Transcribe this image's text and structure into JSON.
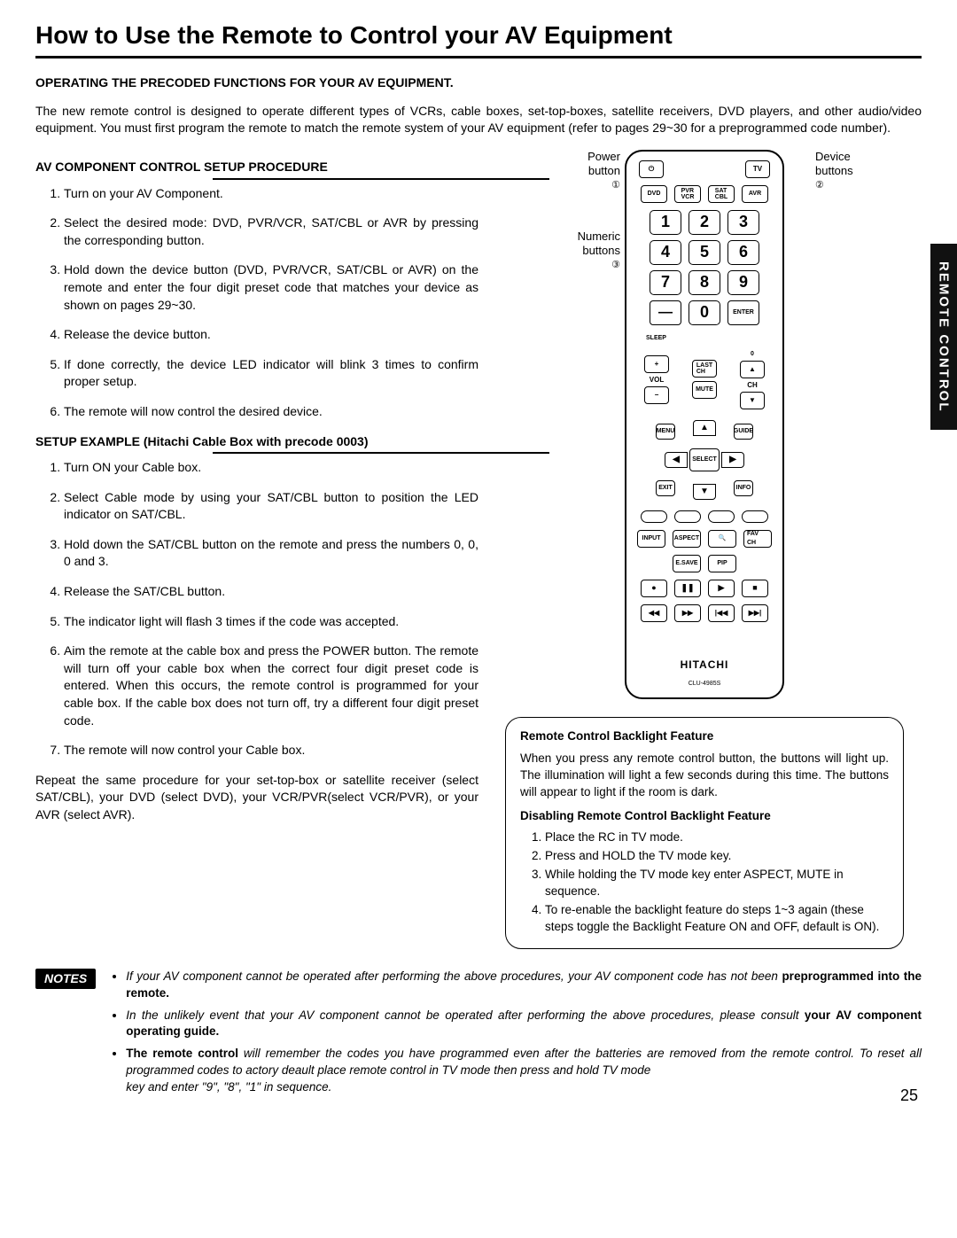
{
  "title": "How to Use the Remote to Control your AV Equipment",
  "section_heading": "OPERATING THE PRECODED FUNCTIONS FOR YOUR AV EQUIPMENT.",
  "intro": "The new remote control is designed to operate different types of VCRs, cable boxes, set-top-boxes, satellite receivers, DVD players, and other audio/video equipment. You must first program the remote to match the remote system of your AV equipment (refer to pages 29~30 for a preprogrammed code number).",
  "setup_heading": "AV COMPONENT CONTROL SETUP PROCEDURE",
  "setup_steps": [
    "Turn on your AV Component.",
    "Select the desired mode: DVD, PVR/VCR, SAT/CBL or AVR by pressing the corresponding button.",
    "Hold down the device button (DVD, PVR/VCR, SAT/CBL or AVR) on the remote and enter the four digit preset code that matches your device as shown on pages 29~30.",
    "Release the device button.",
    "If done correctly, the device LED indicator will blink 3 times to confirm proper setup.",
    "The remote will now control the desired device."
  ],
  "example_heading": "SETUP EXAMPLE (Hitachi Cable Box with precode 0003)",
  "example_steps": [
    "Turn ON your Cable box.",
    "Select Cable mode by using your SAT/CBL button to position the LED indicator on SAT/CBL.",
    "Hold down the SAT/CBL button on the remote and press the numbers 0, 0, 0 and 3.",
    " Release the SAT/CBL button.",
    "The indicator light will flash 3 times if the code was accepted.",
    "Aim the remote at the cable box and press the POWER button. The remote will turn off your cable box when the correct four digit preset code is entered. When this occurs, the remote control is programmed for your cable box. If the cable box does not turn off, try a different four digit preset code.",
    "The remote will now control your Cable box."
  ],
  "repeat_text": "Repeat the same procedure for your set-top-box or satellite receiver (select SAT/CBL), your DVD (select DVD), your VCR/PVR(select VCR/PVR), or your AVR (select AVR).",
  "callouts": {
    "power": "Power button",
    "power_num": "①",
    "device": "Device buttons",
    "device_num": "②",
    "numeric": "Numeric buttons",
    "numeric_num": "③"
  },
  "remote": {
    "power_icon": "⏻",
    "tv": "TV",
    "device_row": [
      "DVD",
      "PVR\nVCR",
      "SAT\nCBL",
      "AVR"
    ],
    "numbers": [
      "1",
      "2",
      "3",
      "4",
      "5",
      "6",
      "7",
      "8",
      "9",
      "—",
      "0",
      "ENTER"
    ],
    "sleep": "SLEEP",
    "vol": "VOL",
    "plus": "+",
    "minus": "−",
    "last_ch": "LAST\nCH",
    "mute": "MUTE",
    "ch": "CH",
    "ch_up": "▲",
    "ch_dn": "▼",
    "ch_zero": "0",
    "menu": "MENU",
    "guide": "GUIDE",
    "exit": "EXIT",
    "info": "INFO",
    "select": "SELECT",
    "arrow_up": "▲",
    "arrow_down": "▼",
    "arrow_left": "◀",
    "arrow_right": "▶",
    "color_row": [
      "",
      "",
      "",
      ""
    ],
    "func_row1": [
      "INPUT",
      "ASPECT",
      "🔍",
      "FAV CH"
    ],
    "func_row2": [
      "E.SAVE",
      "PIP"
    ],
    "transport1": [
      "●",
      "❚❚",
      "▶",
      "■"
    ],
    "transport2": [
      "◀◀",
      "▶▶",
      "|◀◀",
      "▶▶|"
    ],
    "brand": "HITACHI",
    "model": "CLU-4985S"
  },
  "backlight": {
    "title1": "Remote Control Backlight Feature",
    "text": "When you press any remote control button, the buttons will light up. The illumination will light a few seconds during this time. The buttons will appear to light if the room is dark.",
    "title2": "Disabling Remote Control Backlight Feature",
    "steps": [
      "Place the RC in TV mode.",
      "Press and HOLD the TV mode key.",
      "While holding the TV mode key enter ASPECT, MUTE in sequence.",
      "To re-enable the backlight feature do steps 1~3 again (these steps toggle the Backlight Feature ON and OFF, default is ON)."
    ]
  },
  "notes_label": "NOTES",
  "notes": [
    {
      "pre": "If your AV component cannot be operated after performing the above procedures, your AV component code has not been ",
      "bold": "preprogrammed into the remote."
    },
    {
      "pre": "In the unlikely event that your AV component cannot be operated after performing the above procedures, please consult ",
      "bold": "your AV component operating guide."
    },
    {
      "bold": "The remote control",
      "pre2": "    will remember the codes you have programmed even after the batteries are removed from the remote control. To reset all programmed codes to actory deault place remote control in TV mode then press and hold TV mode ",
      "post_italic": "key and enter \"9\", \"8\", \"1\" in sequence."
    }
  ],
  "side_tab": "REMOTE CONTROL",
  "page_number": "25"
}
